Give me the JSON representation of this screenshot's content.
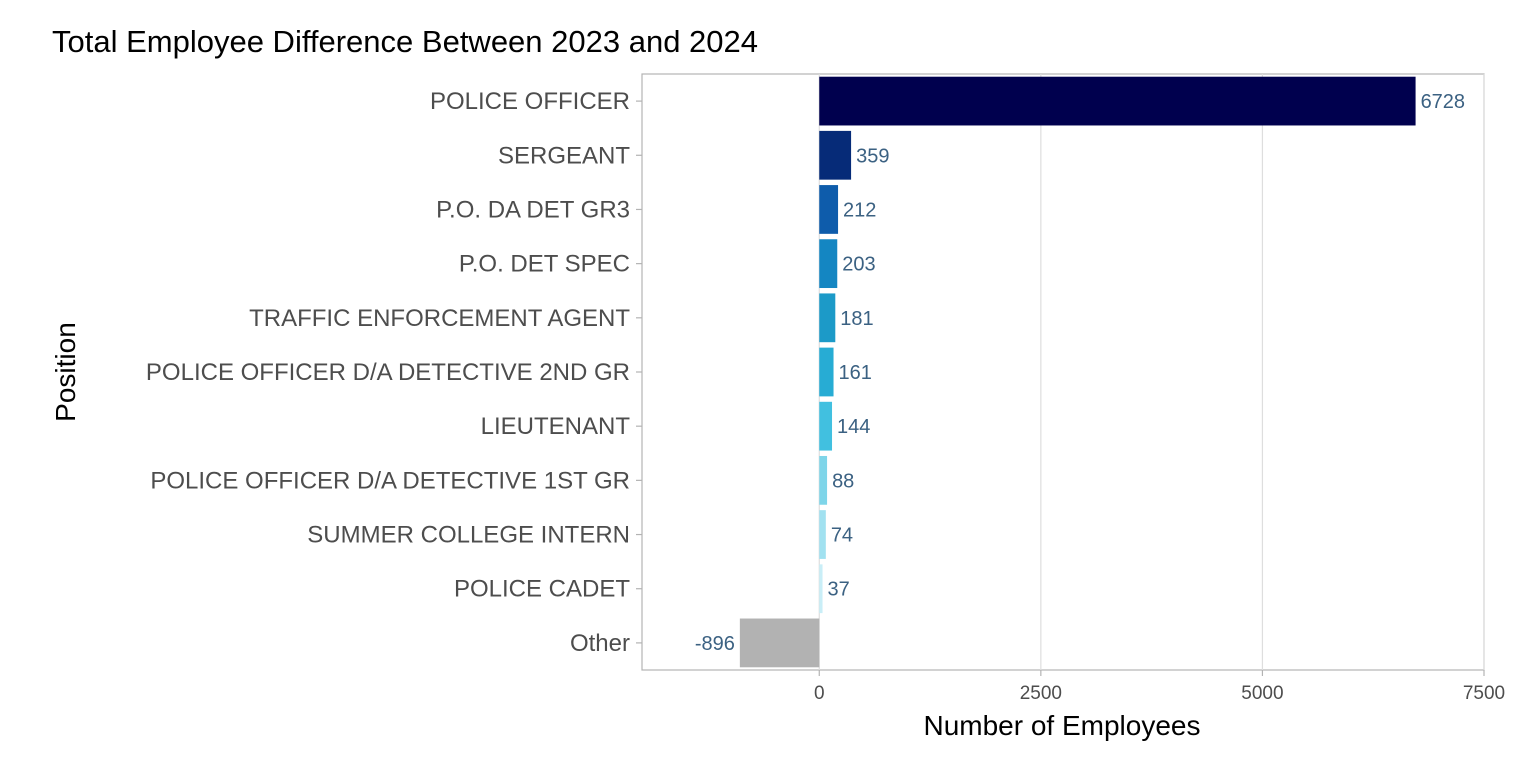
{
  "chart_data": {
    "type": "bar",
    "orientation": "horizontal",
    "title": "Total Employee Difference Between 2023 and 2024",
    "xlabel": "Number of Employees",
    "ylabel": "Position",
    "xlim": [
      -2000,
      7500
    ],
    "xticks": [
      0,
      2500,
      5000,
      7500
    ],
    "grid": true,
    "categories": [
      "POLICE OFFICER",
      "SERGEANT",
      "P.O. DA DET GR3",
      "P.O. DET SPEC",
      "TRAFFIC ENFORCEMENT AGENT",
      "POLICE OFFICER D/A DETECTIVE 2ND GR",
      "LIEUTENANT",
      "POLICE OFFICER D/A DETECTIVE 1ST GR",
      "SUMMER COLLEGE INTERN",
      "POLICE CADET",
      "Other"
    ],
    "values": [
      6728,
      359,
      212,
      203,
      181,
      161,
      144,
      88,
      74,
      37,
      -896
    ],
    "colors": [
      "#00004e",
      "#062b78",
      "#0e5cab",
      "#1486c2",
      "#1c9ac8",
      "#27acd4",
      "#41c0e0",
      "#7ed5e9",
      "#a1e1f0",
      "#c9eef7",
      "#b2b2b2"
    ]
  }
}
